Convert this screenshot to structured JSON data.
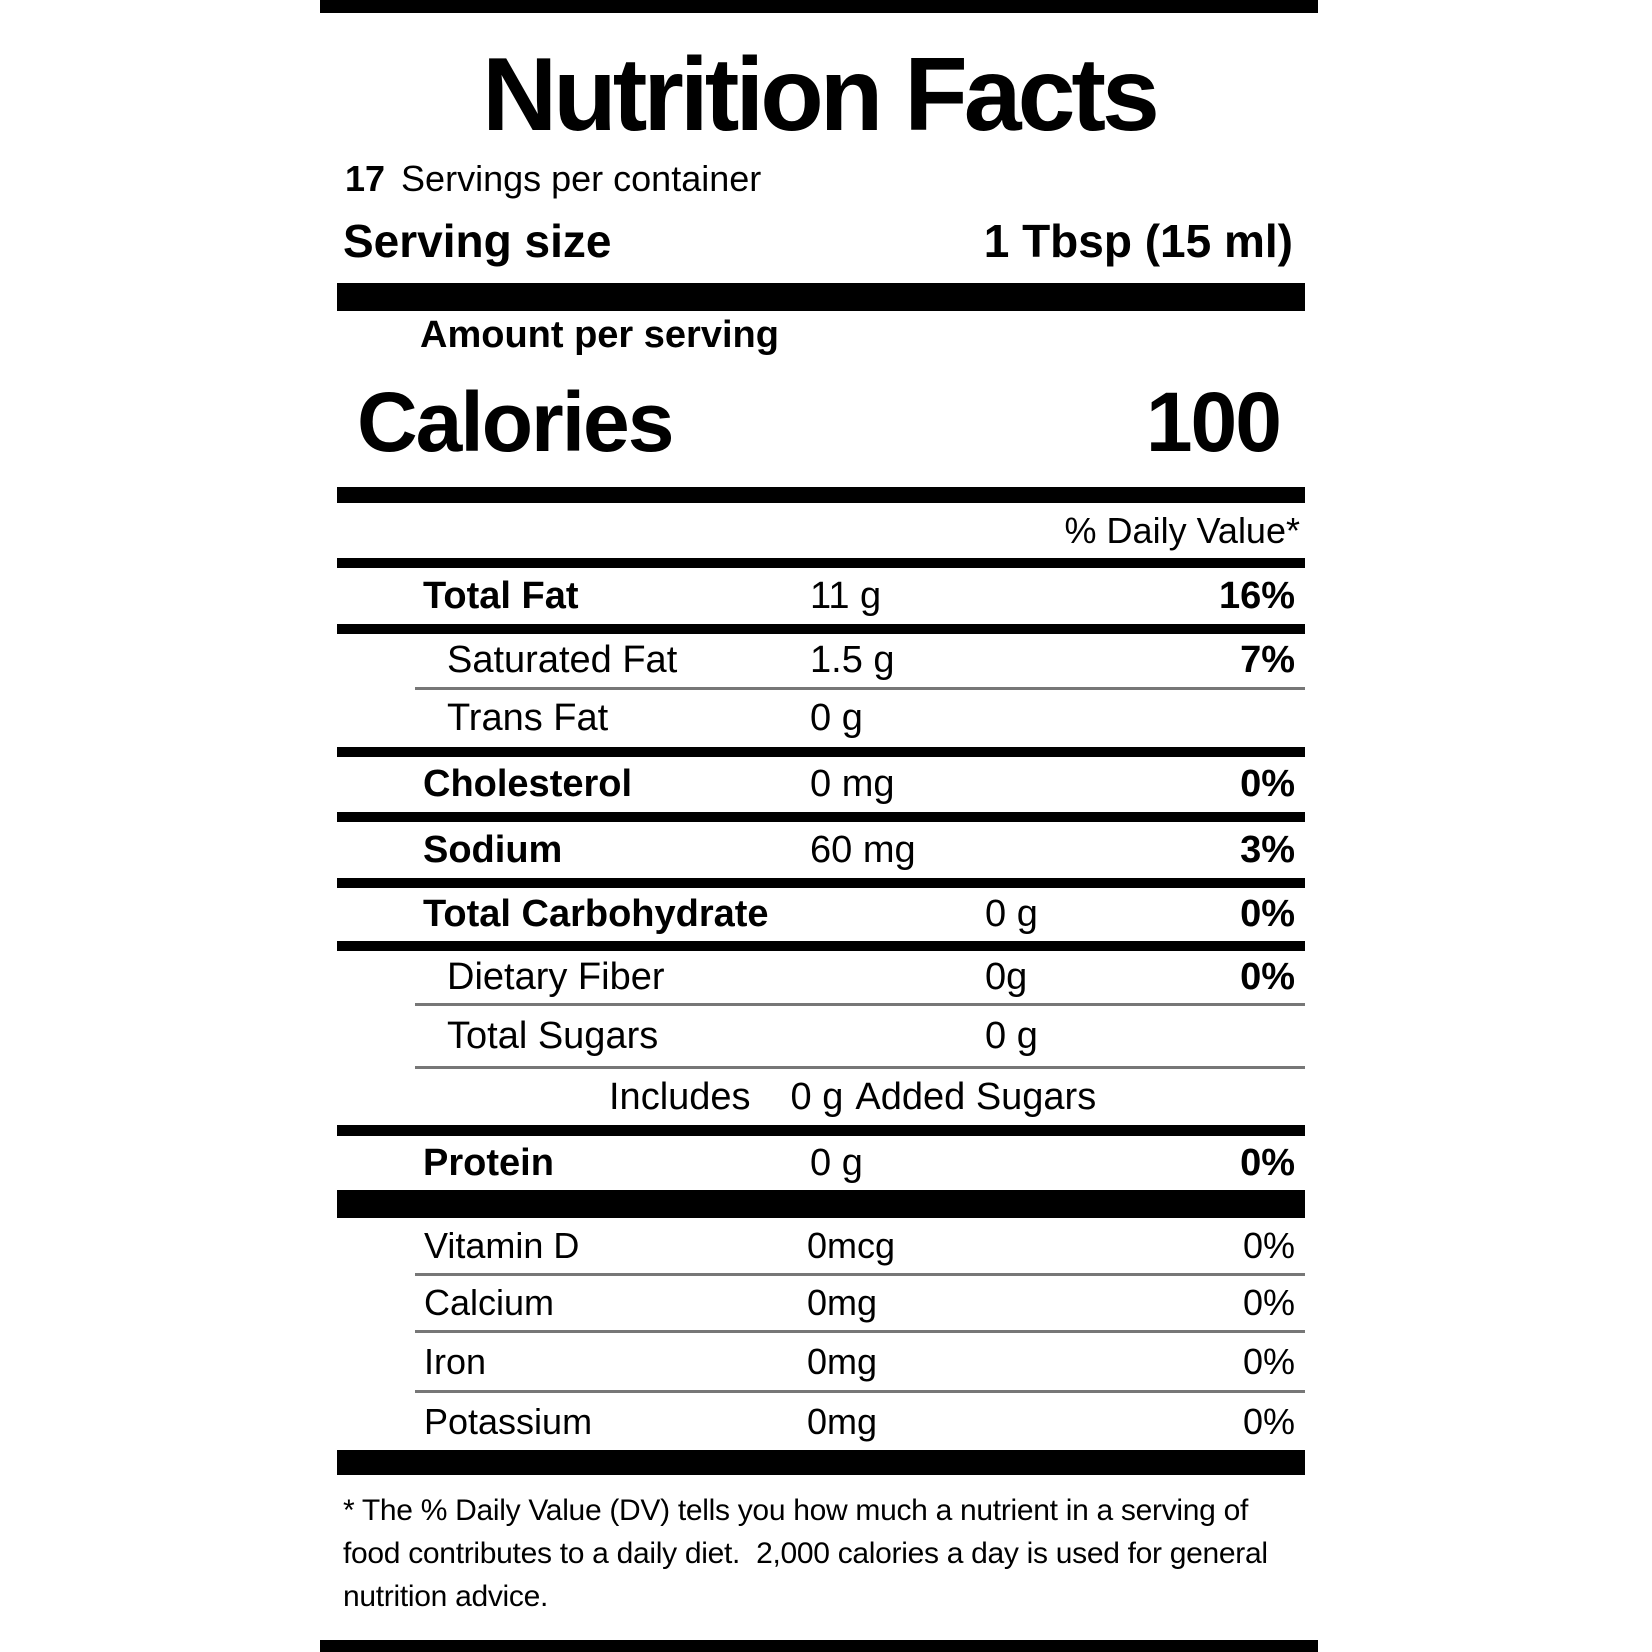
{
  "label": {
    "title": "Nutrition Facts",
    "servings_count": "17",
    "servings_text": "Servings per container",
    "serving_size_label": "Serving size",
    "serving_size_value": "1 Tbsp (15 ml)",
    "amount_per_serving": "Amount per serving",
    "calories_label": "Calories",
    "calories_value": "100",
    "daily_value_header": "% Daily Value*",
    "nutrients": [
      {
        "label": "Total Fat",
        "value": "11 g",
        "pct": "16%"
      },
      {
        "label": "Saturated Fat",
        "value": "1.5 g",
        "pct": "7%"
      },
      {
        "label": "Trans Fat",
        "value": "0 g",
        "pct": ""
      },
      {
        "label": "Cholesterol",
        "value": "0 mg",
        "pct": "0%"
      },
      {
        "label": "Sodium",
        "value": "60 mg",
        "pct": "3%"
      },
      {
        "label": "Total Carbohydrate",
        "value": "0 g",
        "pct": "0%"
      },
      {
        "label": "Dietary Fiber",
        "value": "0g",
        "pct": "0%"
      },
      {
        "label": "Total Sugars",
        "value": "0 g",
        "pct": ""
      },
      {
        "label": "Protein",
        "value": "0 g",
        "pct": "0%"
      }
    ],
    "added_sugars": {
      "includes": "Includes",
      "amount": "0 g",
      "text": "Added Sugars"
    },
    "vitamins": [
      {
        "label": "Vitamin D",
        "value": "0mcg",
        "pct": "0%"
      },
      {
        "label": "Calcium",
        "value": "0mg",
        "pct": "0%"
      },
      {
        "label": "Iron",
        "value": "0mg",
        "pct": "0%"
      },
      {
        "label": "Potassium",
        "value": "0mg",
        "pct": "0%"
      }
    ],
    "footnote_lines": [
      "* The % Daily Value (DV) tells you how much a nutrient in a serving of",
      "food contributes to a daily diet.  2,000 calories a day is used for general",
      "nutrition advice."
    ],
    "colors": {
      "ink": "#000000",
      "paper": "#ffffff"
    }
  }
}
